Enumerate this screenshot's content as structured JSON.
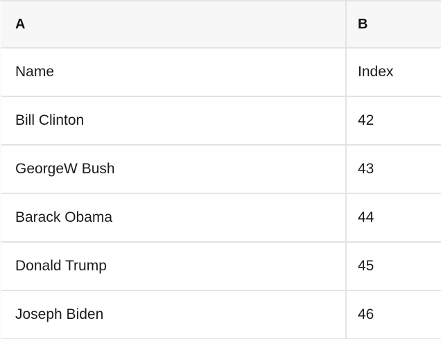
{
  "table": {
    "column_letters": [
      "A",
      "B"
    ],
    "rows": [
      [
        "Name",
        "Index"
      ],
      [
        "Bill Clinton",
        "42"
      ],
      [
        "GeorgeW Bush",
        "43"
      ],
      [
        "Barack Obama",
        "44"
      ],
      [
        "Donald Trump",
        "45"
      ],
      [
        "Joseph Biden",
        "46"
      ]
    ],
    "colors": {
      "header_bg": "#f7f7f7",
      "border": "#e3e3e3",
      "text": "#1b1b1b",
      "header_text": "#111111",
      "row_bg": "#ffffff"
    }
  }
}
